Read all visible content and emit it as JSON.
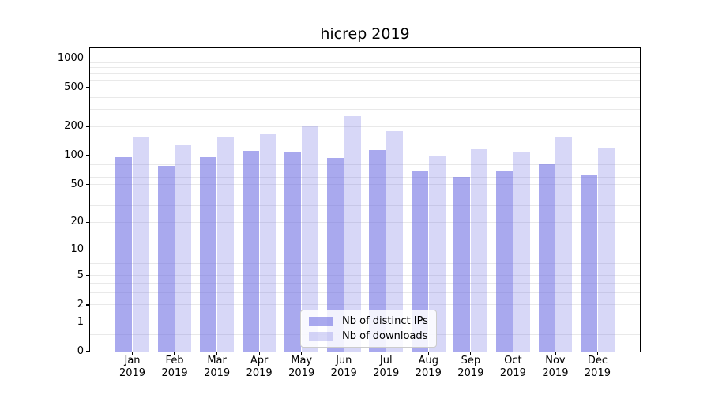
{
  "chart_data": {
    "type": "bar",
    "title": "hicrep 2019",
    "categories": [
      "Jan",
      "Feb",
      "Mar",
      "Apr",
      "May",
      "Jun",
      "Jul",
      "Aug",
      "Sep",
      "Oct",
      "Nov",
      "Dec"
    ],
    "x_year_label": "2019",
    "series": [
      {
        "name": "Nb of distinct IPs",
        "color": "rgba(112,112,227,0.60)",
        "values": [
          97,
          78,
          96,
          113,
          110,
          94,
          114,
          70,
          60,
          70,
          81,
          62
        ]
      },
      {
        "name": "Nb of downloads",
        "color": "rgba(112,112,227,0.28)",
        "values": [
          155,
          130,
          155,
          168,
          200,
          255,
          178,
          100,
          116,
          111,
          154,
          120
        ]
      }
    ],
    "yscale": "log1p",
    "ylim": [
      0,
      1271
    ],
    "y_tick_values": [
      0,
      1,
      2,
      5,
      10,
      20,
      50,
      100,
      200,
      500,
      1000
    ],
    "y_major_grid": [
      1,
      10,
      100,
      1000
    ],
    "y_minor_grid": [
      0.5,
      2,
      3,
      4,
      5,
      6,
      7,
      8,
      9,
      20,
      30,
      40,
      50,
      60,
      70,
      80,
      90,
      200,
      300,
      400,
      500,
      600,
      700,
      800,
      900
    ],
    "legend_position": "lower center",
    "grid": true
  },
  "colors": {
    "major_grid": "#b0b0b0",
    "minor_grid": "#e9e9e9",
    "axis": "#000000",
    "background": "#ffffff"
  }
}
